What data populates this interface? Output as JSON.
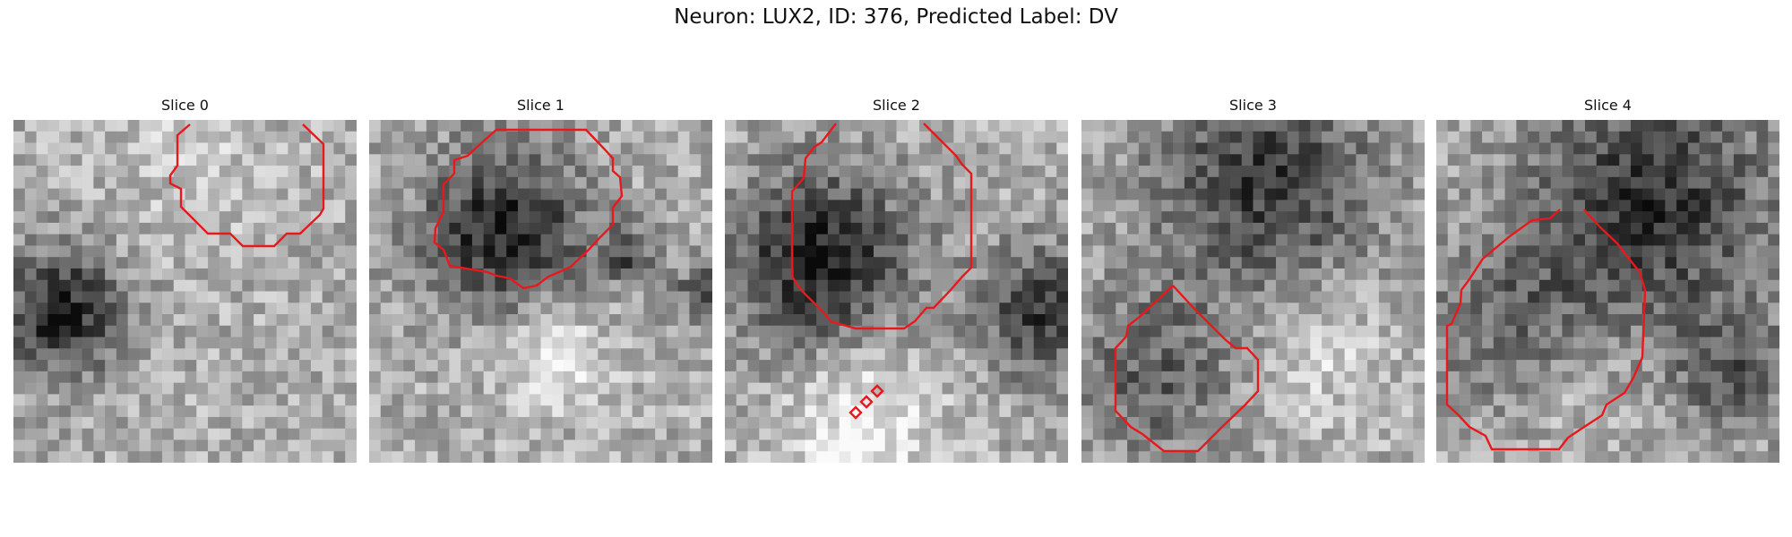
{
  "figure": {
    "suptitle": "Neuron: LUX2, ID: 376, Predicted Label: DV"
  },
  "panels": [
    {
      "title": "Slice 0",
      "contours": [
        "main"
      ],
      "seed": 11
    },
    {
      "title": "Slice 1",
      "contours": [
        "main"
      ],
      "seed": 23
    },
    {
      "title": "Slice 2",
      "contours": [
        "main",
        "small-1",
        "small-2",
        "small-3"
      ],
      "seed": 37
    },
    {
      "title": "Slice 3",
      "contours": [
        "main"
      ],
      "seed": 49
    },
    {
      "title": "Slice 4",
      "contours": [
        "main"
      ],
      "seed": 61
    }
  ],
  "colors": {
    "contour": "#e8181c",
    "background": "#ffffff"
  },
  "colormap": "gray"
}
